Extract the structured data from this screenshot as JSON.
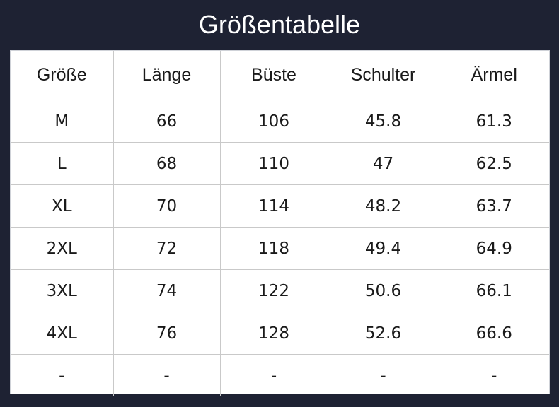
{
  "title": "Größentabelle",
  "table": {
    "headers": [
      "Größe",
      "Länge",
      "Büste",
      "Schulter",
      "Ärmel"
    ],
    "rows": [
      [
        "M",
        "66",
        "106",
        "45.8",
        "61.3"
      ],
      [
        "L",
        "68",
        "110",
        "47",
        "62.5"
      ],
      [
        "XL",
        "70",
        "114",
        "48.2",
        "63.7"
      ],
      [
        "2XL",
        "72",
        "118",
        "49.4",
        "64.9"
      ],
      [
        "3XL",
        "74",
        "122",
        "50.6",
        "66.1"
      ],
      [
        "4XL",
        "76",
        "128",
        "52.6",
        "66.6"
      ],
      [
        "-",
        "-",
        "-",
        "-",
        "-"
      ]
    ]
  },
  "colors": {
    "background": "#1e2233",
    "table_background": "#ffffff",
    "grid": "#c9c9c9",
    "text": "#1a1a1a",
    "title_text": "#ffffff"
  }
}
